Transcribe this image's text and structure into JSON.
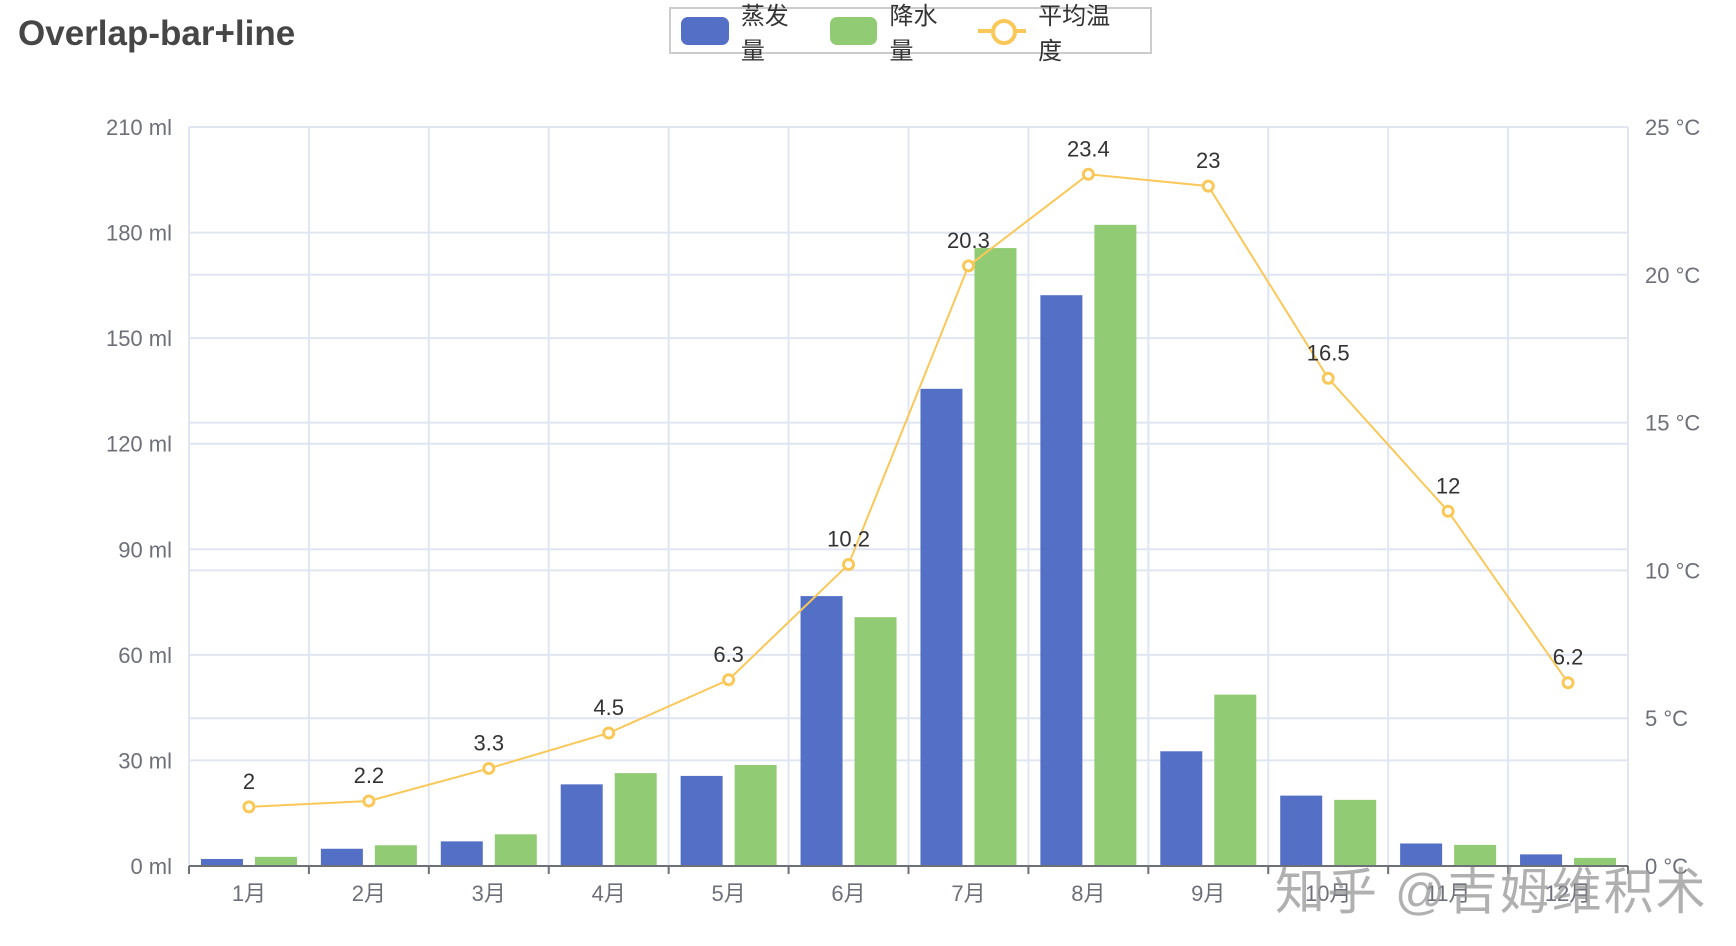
{
  "title": "Overlap-bar+line",
  "legend": [
    {
      "name": "蒸发量",
      "color": "#5470c6",
      "type": "bar"
    },
    {
      "name": "降水量",
      "color": "#91cc75",
      "type": "bar"
    },
    {
      "name": "平均温度",
      "color": "#fac858",
      "type": "line"
    }
  ],
  "watermark": "知乎 @吉姆维积术",
  "chart_data": {
    "type": "bar",
    "title": "Overlap-bar+line",
    "categories": [
      "1月",
      "2月",
      "3月",
      "4月",
      "5月",
      "6月",
      "7月",
      "8月",
      "9月",
      "10月",
      "11月",
      "12月"
    ],
    "series": [
      {
        "name": "蒸发量",
        "type": "bar",
        "yAxis": "left",
        "color": "#5470c6",
        "values": [
          2.0,
          4.9,
          7.0,
          23.2,
          25.6,
          76.7,
          135.6,
          162.2,
          32.6,
          20.0,
          6.4,
          3.3
        ]
      },
      {
        "name": "降水量",
        "type": "bar",
        "yAxis": "left",
        "color": "#91cc75",
        "values": [
          2.6,
          5.9,
          9.0,
          26.4,
          28.7,
          70.7,
          175.6,
          182.2,
          48.7,
          18.8,
          6.0,
          2.3
        ]
      },
      {
        "name": "平均温度",
        "type": "line",
        "yAxis": "right",
        "color": "#fac858",
        "values": [
          2,
          2.2,
          3.3,
          4.5,
          6.3,
          10.2,
          20.3,
          23.4,
          23,
          16.5,
          12,
          6.2
        ],
        "labels": [
          "2",
          "2.2",
          "3.3",
          "4.5",
          "6.3",
          "10.2",
          "20.3",
          "23.4",
          "23",
          "16.5",
          "12",
          "6.2"
        ]
      }
    ],
    "y_left": {
      "min": 0,
      "max": 210,
      "interval": 30,
      "ticks": [
        "0 ml",
        "30 ml",
        "60 ml",
        "90 ml",
        "120 ml",
        "150 ml",
        "180 ml",
        "210 ml"
      ]
    },
    "y_right": {
      "min": 0,
      "max": 25,
      "interval": 5,
      "ticks": [
        "0 °C",
        "5 °C",
        "10 °C",
        "15 °C",
        "20 °C",
        "25 °C"
      ]
    },
    "xlabel": "",
    "ylabel": "",
    "grid": true,
    "legend_position": "top-center"
  }
}
